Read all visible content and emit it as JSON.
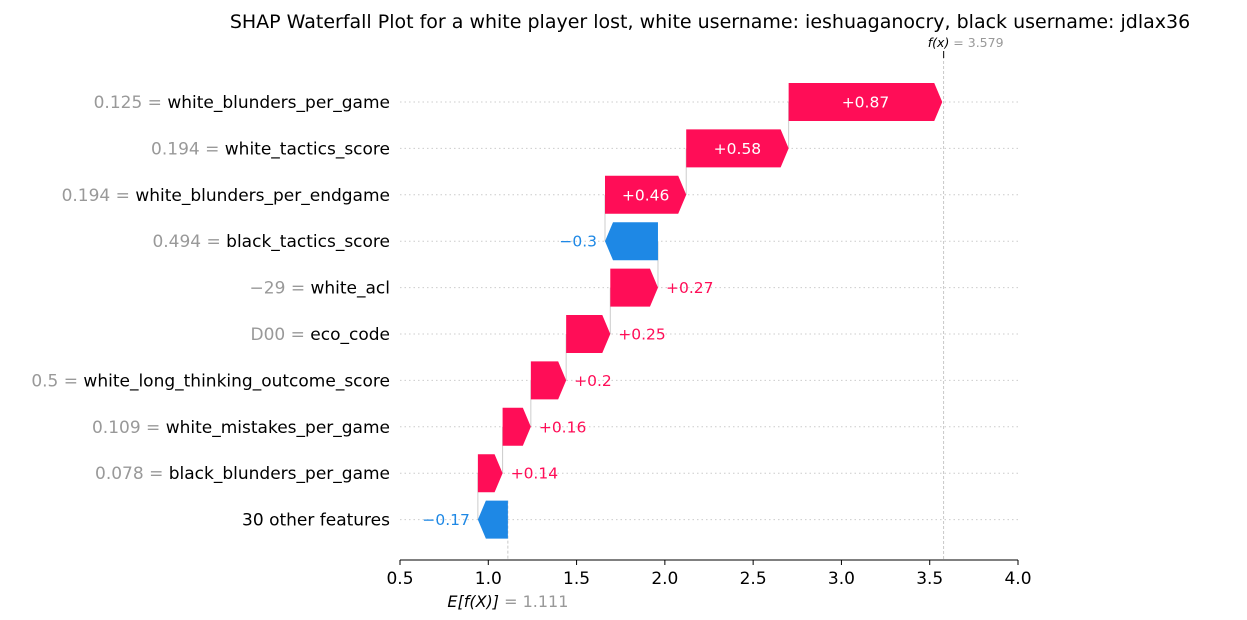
{
  "chart_data": {
    "type": "waterfall",
    "title": "SHAP Waterfall Plot for a white player lost, white username: ieshuaganocry, black username: jdlax36",
    "base_value": 1.111,
    "base_value_label": "1.111",
    "base_label_text": "E[f(X)]",
    "output_value": 3.579,
    "output_value_label": "3.579",
    "output_label_text": "f(x)",
    "xlim": [
      0.5,
      4.0
    ],
    "xticks": [
      0.5,
      1.0,
      1.5,
      2.0,
      2.5,
      3.0,
      3.5,
      4.0
    ],
    "xtick_labels": [
      "0.5",
      "1.0",
      "1.5",
      "2.0",
      "2.5",
      "3.0",
      "3.5",
      "4.0"
    ],
    "grid": "horizontal dotted",
    "colors": {
      "positive": "#ff0d57",
      "negative": "#1e88e5",
      "value_text": "#999999"
    },
    "features": [
      {
        "value": "0.125",
        "name": "white_blunders_per_game",
        "shap": 0.87,
        "label": "+0.87"
      },
      {
        "value": "0.194",
        "name": "white_tactics_score",
        "shap": 0.58,
        "label": "+0.58"
      },
      {
        "value": "0.194",
        "name": "white_blunders_per_endgame",
        "shap": 0.46,
        "label": "+0.46"
      },
      {
        "value": "0.494",
        "name": "black_tactics_score",
        "shap": -0.3,
        "label": "−0.3"
      },
      {
        "value": "−29",
        "name": "white_acl",
        "shap": 0.27,
        "label": "+0.27"
      },
      {
        "value": "D00",
        "name": "eco_code",
        "shap": 0.25,
        "label": "+0.25"
      },
      {
        "value": "0.5",
        "name": "white_long_thinking_outcome_score",
        "shap": 0.2,
        "label": "+0.2"
      },
      {
        "value": "0.109",
        "name": "white_mistakes_per_game",
        "shap": 0.16,
        "label": "+0.16"
      },
      {
        "value": "0.078",
        "name": "black_blunders_per_game",
        "shap": 0.14,
        "label": "+0.14"
      },
      {
        "value": "",
        "name": "30 other features",
        "shap": -0.17,
        "label": "−0.17"
      }
    ]
  }
}
